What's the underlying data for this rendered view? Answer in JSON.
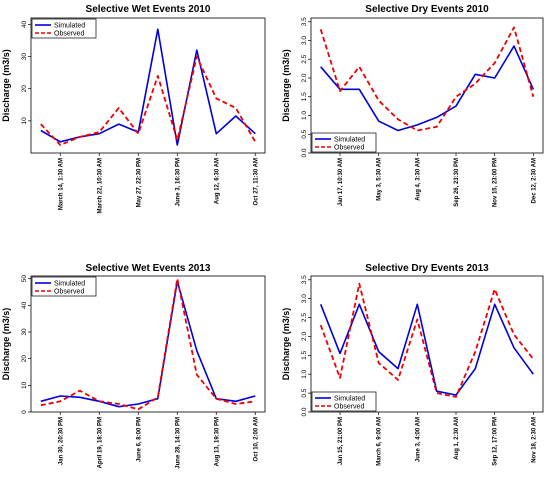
{
  "chart_data": [
    {
      "type": "line",
      "title": "Selective Wet Events 2010",
      "ylabel": "Discharge (m3/s)",
      "ylim": [
        0,
        42
      ],
      "yticks": [
        10,
        20,
        30,
        40
      ],
      "tick_labels": [
        "March 14, 1:30 AM",
        "March 22, 10:30 AM",
        "May 27, 22:30 PM",
        "June 3, 16:30 PM",
        "Aug 12, 6:30 AM",
        "Oct 27, 11:30 AM"
      ],
      "legend_position": "top-left",
      "series": [
        {
          "name": "Simulated",
          "color": "#0000dd",
          "dash": "solid",
          "values": [
            7,
            3.5,
            5,
            6,
            9,
            6.5,
            38.5,
            2.5,
            32,
            6,
            11.5,
            6
          ]
        },
        {
          "name": "Observed",
          "color": "#ee0000",
          "dash": "dashed",
          "values": [
            9,
            2.5,
            5,
            6.5,
            14,
            6,
            24,
            4,
            30,
            17,
            14,
            3.5
          ]
        }
      ]
    },
    {
      "type": "line",
      "title": "Selective Dry Events 2010",
      "ylabel": "Discharge (m3/s)",
      "ylim": [
        0,
        3.6
      ],
      "yticks": [
        "0.0",
        "0.5",
        "1.0",
        "1.5",
        "2.0",
        "2.5",
        "3.0",
        "3.5"
      ],
      "tick_labels": [
        "Jan 17, 10:30 AM",
        "May 3, 5:30 AM",
        "Aug 4, 3:30 AM",
        "Sep 26, 23:30 PM",
        "Nov 15, 23:00 PM",
        "Dec 12, 2:30 AM"
      ],
      "legend_position": "bottom-left",
      "series": [
        {
          "name": "Simulated",
          "color": "#0000dd",
          "dash": "solid",
          "values": [
            2.3,
            1.7,
            1.7,
            0.85,
            0.6,
            0.75,
            0.95,
            1.25,
            2.1,
            2.0,
            2.85,
            1.7
          ]
        },
        {
          "name": "Observed",
          "color": "#ee0000",
          "dash": "dashed",
          "values": [
            3.3,
            1.65,
            2.3,
            1.4,
            0.9,
            0.6,
            0.7,
            1.5,
            1.85,
            2.4,
            3.35,
            1.5
          ]
        }
      ]
    },
    {
      "type": "line",
      "title": "Selective Wet Events 2013",
      "ylabel": "Discharge (m3/s)",
      "ylim": [
        0,
        51
      ],
      "yticks": [
        0,
        10,
        20,
        30,
        40,
        50
      ],
      "tick_labels": [
        "Jan 30, 20:30 PM",
        "April 19, 18:30 PM",
        "June 6, 8:00 PM",
        "June 28, 14:30 PM",
        "Aug 13, 19:30 PM",
        "Oct 10, 2:00 AM"
      ],
      "legend_position": "top-left",
      "series": [
        {
          "name": "Simulated",
          "color": "#0000dd",
          "dash": "solid",
          "values": [
            4,
            6,
            5.5,
            4,
            2,
            3,
            5,
            49,
            23,
            5,
            4,
            6
          ]
        },
        {
          "name": "Observed",
          "color": "#ee0000",
          "dash": "dashed",
          "values": [
            2.5,
            4,
            8,
            4,
            3,
            1,
            5.5,
            50,
            14,
            5,
            3,
            4
          ]
        }
      ]
    },
    {
      "type": "line",
      "title": "Selective Dry Events 2013",
      "ylabel": "Discharge (m3/s)",
      "ylim": [
        0,
        3.6
      ],
      "yticks": [
        "0.0",
        "0.5",
        "1.0",
        "1.5",
        "2.0",
        "2.5",
        "3.0",
        "3.5"
      ],
      "tick_labels": [
        "Jan 15, 21:00 PM",
        "March 6, 9:00 AM",
        "June 3, 4:00 AM",
        "Aug 1, 2:30 AM",
        "Sep 12, 17:00 PM",
        "Nov 18, 2:30 AM"
      ],
      "legend_position": "bottom-left",
      "series": [
        {
          "name": "Simulated",
          "color": "#0000dd",
          "dash": "solid",
          "values": [
            2.85,
            1.55,
            2.85,
            1.6,
            1.15,
            2.85,
            0.55,
            0.45,
            1.15,
            2.85,
            1.7,
            1.0
          ]
        },
        {
          "name": "Observed",
          "color": "#ee0000",
          "dash": "dashed",
          "values": [
            2.3,
            0.9,
            3.4,
            1.3,
            0.85,
            2.45,
            0.5,
            0.4,
            1.6,
            3.25,
            2.05,
            1.4
          ]
        }
      ]
    }
  ]
}
